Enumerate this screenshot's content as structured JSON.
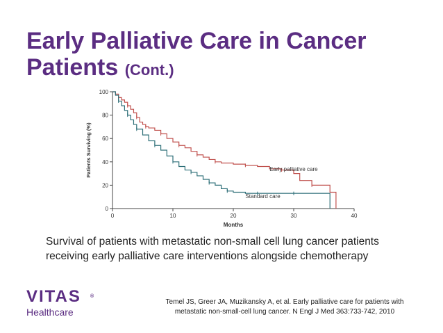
{
  "slide": {
    "title_main": "Early Palliative Care in Cancer Patients",
    "title_sub": "(Cont.)",
    "caption": "Survival of patients with metastatic non-small cell lung cancer patients receiving early palliative care interventions alongside chemotherapy",
    "reference_line1": "Temel JS, Greer JA, Muzikansky A, et al. Early palliative care for patients with",
    "reference_line2": "metastatic non-small-cell lung cancer. N Engl J Med 363:733-742, 2010",
    "logo_word": "VITAS",
    "logo_reg": "®",
    "logo_sub": "Healthcare"
  },
  "colors": {
    "title": "#5b2d82",
    "palliative": "#c0504d",
    "standard": "#2e6f78",
    "axis": "#444444"
  },
  "chart_data": {
    "type": "line",
    "title": "",
    "xlabel": "Months",
    "ylabel": "Patients Surviving (%)",
    "xlim": [
      0,
      40
    ],
    "ylim": [
      0,
      100
    ],
    "xticks": [
      0,
      10,
      20,
      30,
      40
    ],
    "yticks": [
      0,
      20,
      40,
      60,
      80,
      100
    ],
    "series": [
      {
        "name": "Early palliative care",
        "step": true,
        "x": [
          0,
          0.5,
          1,
          1.5,
          2,
          2.5,
          3,
          3.5,
          4,
          4.5,
          5,
          5.5,
          6,
          7,
          8,
          9,
          10,
          11,
          12,
          13,
          14,
          15,
          16,
          17,
          18,
          20,
          22,
          24,
          26,
          28,
          30,
          31,
          33,
          35,
          36,
          37
        ],
        "y": [
          100,
          98,
          95,
          93,
          91,
          88,
          85,
          82,
          78,
          74,
          72,
          70,
          69,
          67,
          64,
          60,
          57,
          54,
          52,
          49,
          46,
          44,
          42,
          40,
          39,
          38,
          37,
          36,
          34,
          33,
          30,
          24,
          20,
          20,
          14,
          0
        ]
      },
      {
        "name": "Standard care",
        "step": true,
        "x": [
          0,
          0.5,
          1,
          1.5,
          2,
          2.5,
          3,
          3.5,
          4,
          5,
          6,
          7,
          8,
          9,
          10,
          11,
          12,
          13,
          14,
          15,
          16,
          17,
          18,
          19,
          20,
          22,
          24,
          26,
          28,
          30,
          33,
          35,
          36
        ],
        "y": [
          100,
          97,
          92,
          88,
          84,
          80,
          76,
          72,
          68,
          63,
          58,
          54,
          50,
          45,
          40,
          36,
          33,
          31,
          28,
          25,
          22,
          20,
          17,
          15,
          14,
          13,
          13,
          13,
          13,
          13,
          13,
          13,
          0
        ]
      }
    ],
    "annotations": [
      {
        "text": "Early palliative care",
        "x": 26,
        "y": 32
      },
      {
        "text": "Standard care",
        "x": 22,
        "y": 9
      }
    ]
  }
}
